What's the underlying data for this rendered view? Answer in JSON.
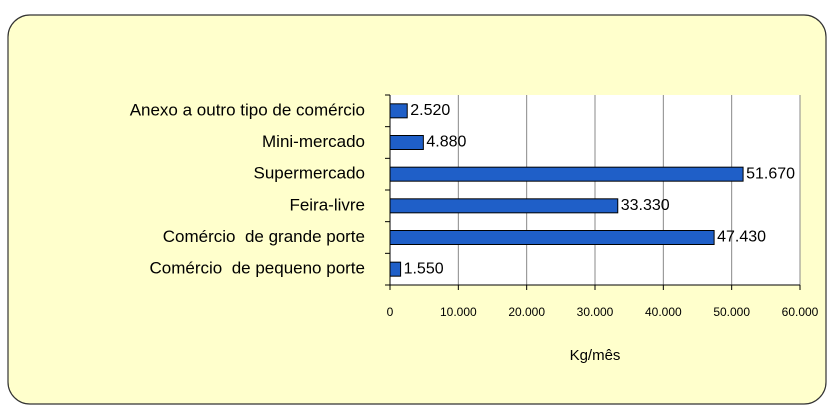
{
  "chart_data": {
    "type": "bar",
    "orientation": "horizontal",
    "categories": [
      "Anexo a outro tipo de comércio",
      "Mini-mercado",
      "Supermercado",
      "Feira-livre",
      "Comércio  de grande porte",
      "Comércio  de pequeno porte"
    ],
    "values": [
      2520,
      4880,
      51670,
      33330,
      47430,
      1550
    ],
    "value_labels": [
      "2.520",
      "4.880",
      "51.670",
      "33.330",
      "47.430",
      "1.550"
    ],
    "color": "#1f5fc8",
    "xlim": [
      0,
      60000
    ],
    "xticks": [
      0,
      {
        "value": 10000,
        "label": "10.000"
      },
      {
        "value": 20000,
        "label": "20.000"
      },
      {
        "value": 30000,
        "label": "30.000"
      },
      {
        "value": 40000,
        "label": "40.000"
      },
      {
        "value": 50000,
        "label": "50.000"
      },
      {
        "value": 60000,
        "label": "60.000"
      }
    ],
    "xlabel": "Kg/mês",
    "grid": true
  }
}
